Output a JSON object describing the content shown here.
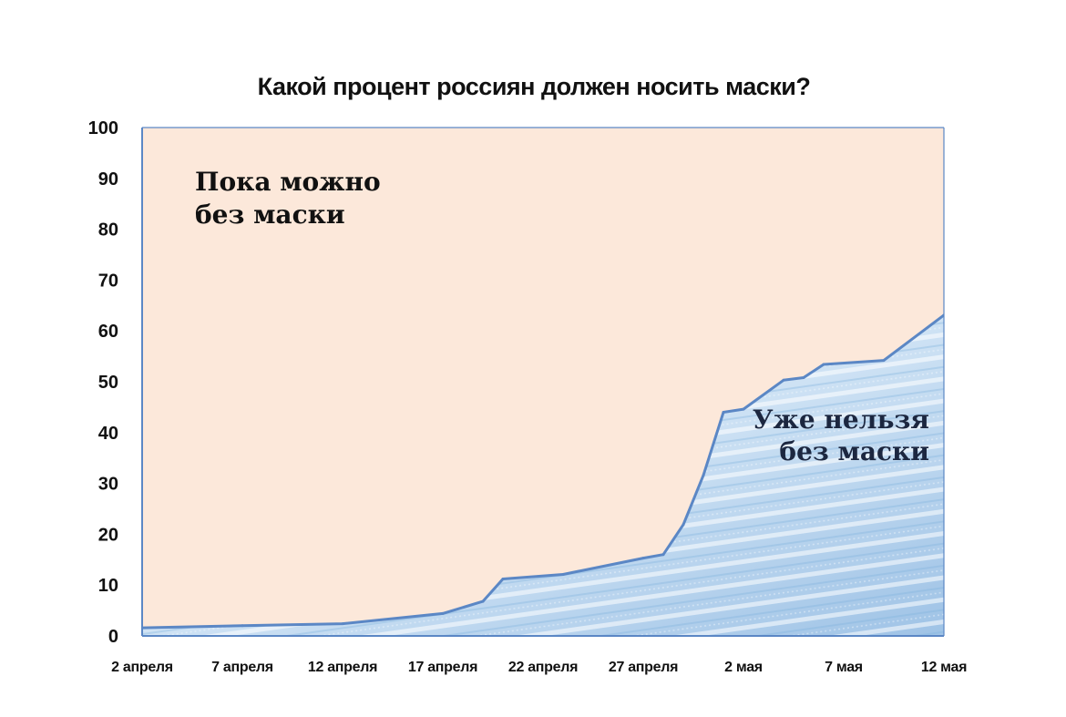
{
  "chart_data": {
    "type": "area",
    "title": "Какой процент россиян должен носить маски?",
    "xlabel": "",
    "ylabel": "",
    "ylim": [
      0,
      100
    ],
    "y_ticks": [
      0,
      10,
      20,
      30,
      40,
      50,
      60,
      70,
      80,
      90,
      100
    ],
    "x_range": [
      "2020-04-02",
      "2020-05-12"
    ],
    "x_ticks": [
      {
        "date": "2020-04-02",
        "label": "2 апреля"
      },
      {
        "date": "2020-04-07",
        "label": "7 апреля"
      },
      {
        "date": "2020-04-12",
        "label": "12 апреля"
      },
      {
        "date": "2020-04-17",
        "label": "17 апреля"
      },
      {
        "date": "2020-04-22",
        "label": "22 апреля"
      },
      {
        "date": "2020-04-27",
        "label": "27 апреля"
      },
      {
        "date": "2020-05-02",
        "label": "2 мая"
      },
      {
        "date": "2020-05-07",
        "label": "7 мая"
      },
      {
        "date": "2020-05-12",
        "label": "12 мая"
      }
    ],
    "series": [
      {
        "points": [
          {
            "x": "2020-04-02",
            "y": 1.6
          },
          {
            "x": "2020-04-07",
            "y": 2.0
          },
          {
            "x": "2020-04-12",
            "y": 2.4
          },
          {
            "x": "2020-04-17",
            "y": 4.4
          },
          {
            "x": "2020-04-19",
            "y": 6.8
          },
          {
            "x": "2020-04-20",
            "y": 11.2
          },
          {
            "x": "2020-04-23",
            "y": 12.1
          },
          {
            "x": "2020-04-27",
            "y": 15.3
          },
          {
            "x": "2020-04-28",
            "y": 16.0
          },
          {
            "x": "2020-04-29",
            "y": 21.9
          },
          {
            "x": "2020-04-30",
            "y": 31.6
          },
          {
            "x": "2020-05-01",
            "y": 44.0
          },
          {
            "x": "2020-05-02",
            "y": 44.6
          },
          {
            "x": "2020-05-04",
            "y": 50.3
          },
          {
            "x": "2020-05-05",
            "y": 50.8
          },
          {
            "x": "2020-05-06",
            "y": 53.4
          },
          {
            "x": "2020-05-09",
            "y": 54.2
          },
          {
            "x": "2020-05-12",
            "y": 63.1
          }
        ]
      }
    ],
    "annotations": [
      {
        "lines": [
          "Пока можно",
          "без маски"
        ]
      },
      {
        "lines": [
          "Уже нельзя",
          "без маски"
        ]
      }
    ],
    "colors": {
      "upper_fill": "#fce8da",
      "lower_fill": "#c3dcf1",
      "line": "#5b87c5",
      "axis": "#5b87c5",
      "text": "#111111",
      "annotation_upper": "#111111",
      "annotation_lower": "#1c2740"
    }
  }
}
